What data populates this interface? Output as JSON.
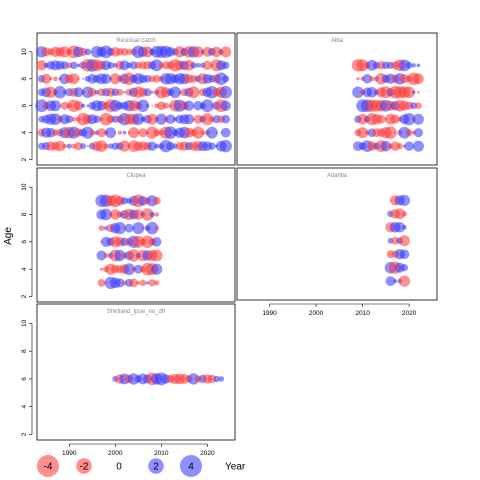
{
  "chart_data": {
    "type": "scatter",
    "description_kind": "residual bubble plots by fleet",
    "ylabel": "Age",
    "xlabel": "Year",
    "x_ticks": [
      1990,
      2000,
      2010,
      2020
    ],
    "y_ticks": [
      2,
      4,
      6,
      8,
      10
    ],
    "xlim": [
      1983,
      2026
    ],
    "ylim": [
      1.6,
      11.4
    ],
    "colors": {
      "positive": "#3333ff",
      "negative": "#ff3333"
    },
    "panels": [
      {
        "title": "Residual catch",
        "years": [
          1984,
          2024
        ],
        "ages": [
          3,
          4,
          5,
          6,
          7,
          8,
          9,
          10
        ]
      },
      {
        "title": "Alba",
        "years": [
          2009,
          2022
        ],
        "ages": [
          3,
          4,
          5,
          6,
          7,
          8,
          9
        ]
      },
      {
        "title": "Clupea",
        "years": [
          1997,
          2009
        ],
        "ages": [
          3,
          4,
          5,
          6,
          7,
          8,
          9
        ]
      },
      {
        "title": "Atlantia",
        "years": [
          2016,
          2019
        ],
        "ages": [
          3,
          4,
          5,
          6,
          7,
          8,
          9
        ]
      },
      {
        "title": "Shetland_lpue_no_dh",
        "years": [
          2000,
          2023
        ],
        "ages": [
          6
        ]
      }
    ],
    "legend": {
      "values": [
        -4,
        -2,
        0,
        2,
        4
      ],
      "labels": [
        "-4",
        "-2",
        "0",
        "2",
        "4"
      ],
      "title": "Year"
    }
  }
}
